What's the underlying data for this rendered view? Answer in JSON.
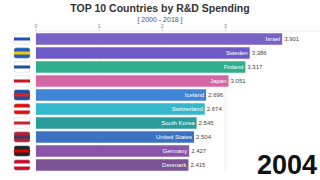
{
  "chart_data": {
    "type": "bar",
    "orientation": "horizontal",
    "title": "TOP 10 Countries by R&D Spending",
    "subtitle": "[ 2000 - 2018 ]",
    "annotation": "2004",
    "categories": [
      "Israel",
      "Sweden",
      "Finland",
      "Japan",
      "Iceland",
      "Switzerland",
      "South Korea",
      "United States",
      "Germany",
      "Denmark"
    ],
    "values": [
      3.901,
      3.386,
      3.317,
      3.051,
      2.696,
      2.674,
      2.545,
      2.504,
      2.427,
      2.415
    ],
    "colors": [
      "#7a62c4",
      "#6f5bc8",
      "#2fae8c",
      "#d566a6",
      "#3f84d6",
      "#33b8cc",
      "#2a9d9a",
      "#3b72c2",
      "#8a55a8",
      "#7c5296"
    ],
    "xlim": [
      0,
      4.5
    ],
    "xticks": [
      0,
      1,
      2,
      3
    ],
    "grid": true,
    "data_labels": true
  }
}
